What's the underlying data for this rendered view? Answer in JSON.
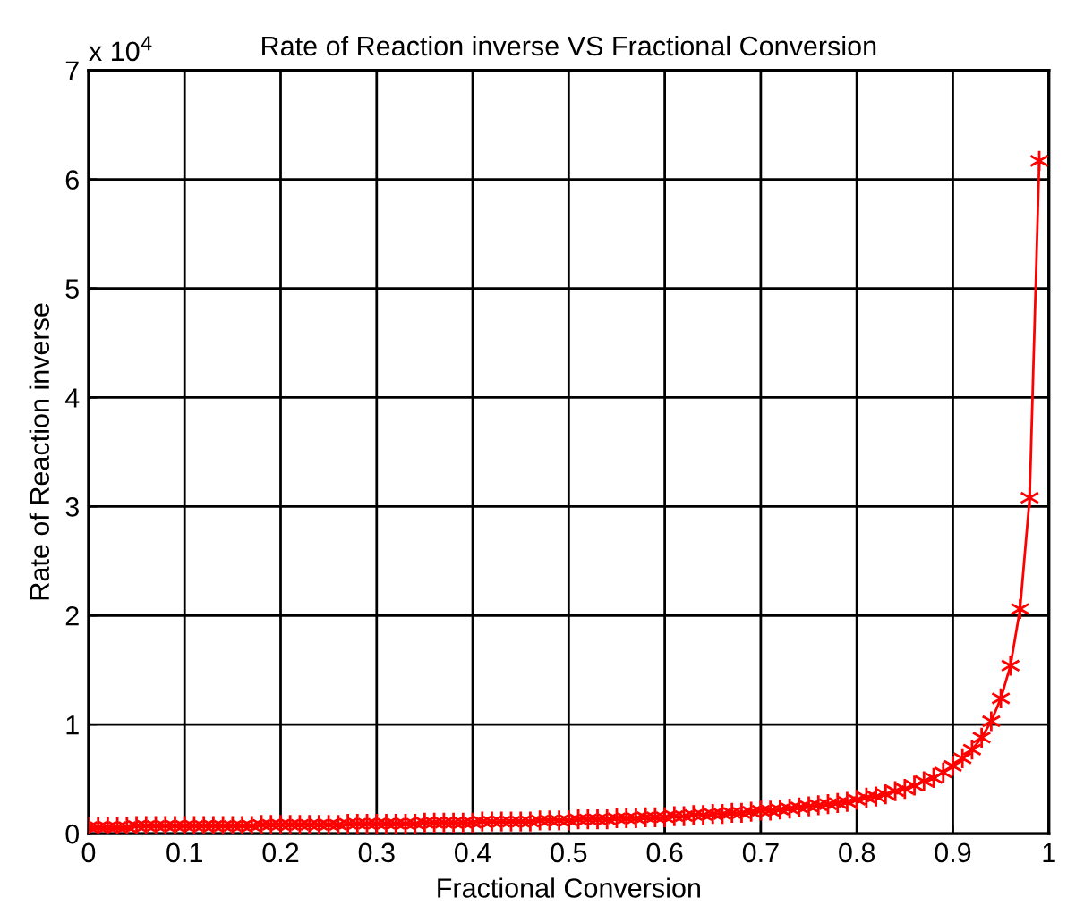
{
  "chart_data": {
    "type": "line",
    "title": "Rate of Reaction inverse VS Fractional Conversion",
    "xlabel": "Fractional Conversion",
    "ylabel": "Rate of Reaction inverse",
    "annotations": [
      "x 10$^{4}$"
    ],
    "x": [
      0,
      0.01,
      0.02,
      0.03,
      0.04,
      0.05,
      0.06,
      0.07,
      0.08,
      0.09,
      0.1,
      0.11,
      0.12,
      0.13,
      0.14,
      0.15,
      0.16,
      0.17,
      0.18,
      0.19,
      0.2,
      0.21,
      0.22,
      0.23,
      0.24,
      0.25,
      0.26,
      0.27,
      0.28,
      0.29,
      0.3,
      0.31,
      0.32,
      0.33,
      0.34,
      0.35,
      0.36,
      0.37,
      0.38,
      0.39,
      0.4,
      0.41,
      0.42,
      0.43,
      0.44,
      0.45,
      0.46,
      0.47,
      0.48,
      0.49,
      0.5,
      0.51,
      0.52,
      0.53,
      0.54,
      0.55,
      0.56,
      0.57,
      0.58,
      0.59,
      0.6,
      0.61,
      0.62,
      0.63,
      0.64,
      0.65,
      0.66,
      0.67,
      0.68,
      0.69,
      0.7,
      0.71,
      0.72,
      0.73,
      0.74,
      0.75,
      0.76,
      0.77,
      0.78,
      0.79,
      0.8,
      0.81,
      0.82,
      0.83,
      0.84,
      0.85,
      0.86,
      0.87,
      0.88,
      0.89,
      0.9,
      0.91,
      0.92,
      0.93,
      0.94,
      0.95,
      0.96,
      0.97,
      0.98,
      0.99
    ],
    "series": [
      {
        "color": "#ff0000",
        "values": [
          0.06,
          0.06,
          0.06,
          0.06,
          0.06,
          0.07,
          0.07,
          0.07,
          0.07,
          0.07,
          0.07,
          0.07,
          0.07,
          0.07,
          0.07,
          0.07,
          0.07,
          0.07,
          0.08,
          0.08,
          0.08,
          0.08,
          0.08,
          0.08,
          0.08,
          0.08,
          0.08,
          0.09,
          0.09,
          0.09,
          0.09,
          0.09,
          0.09,
          0.09,
          0.09,
          0.1,
          0.1,
          0.1,
          0.1,
          0.1,
          0.1,
          0.11,
          0.11,
          0.11,
          0.11,
          0.11,
          0.11,
          0.12,
          0.12,
          0.12,
          0.12,
          0.13,
          0.13,
          0.13,
          0.13,
          0.14,
          0.14,
          0.14,
          0.15,
          0.15,
          0.15,
          0.16,
          0.16,
          0.17,
          0.17,
          0.18,
          0.18,
          0.19,
          0.19,
          0.2,
          0.21,
          0.21,
          0.22,
          0.23,
          0.24,
          0.25,
          0.26,
          0.27,
          0.28,
          0.29,
          0.31,
          0.33,
          0.34,
          0.36,
          0.39,
          0.41,
          0.44,
          0.48,
          0.51,
          0.56,
          0.62,
          0.69,
          0.77,
          0.88,
          1.03,
          1.24,
          1.54,
          2.06,
          3.08,
          6.17
        ]
      }
    ],
    "xlim": [
      0,
      1
    ],
    "xticks": [
      0,
      0.1,
      0.2,
      0.3,
      0.4,
      0.5,
      0.6,
      0.7,
      0.8,
      0.9,
      1
    ],
    "ylim": [
      0,
      7
    ],
    "yticks": [
      0,
      1,
      2,
      3,
      4,
      5,
      6,
      7
    ],
    "grid": true,
    "marker": "cross",
    "line_style": "solid"
  }
}
